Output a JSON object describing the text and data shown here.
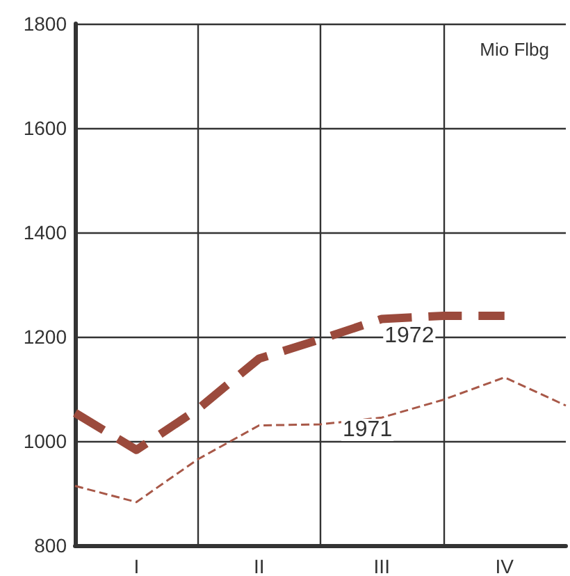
{
  "chart_data": {
    "type": "line",
    "ylabel": "Mio Flbg",
    "categories": [
      null,
      "I",
      null,
      "II",
      null,
      "III",
      null,
      "IV",
      null
    ],
    "ylim": [
      800,
      1800
    ],
    "yticks": [
      800,
      1000,
      1200,
      1400,
      1600,
      1800
    ],
    "grid": true,
    "legend": false,
    "line_style": "dashed",
    "series": [
      {
        "name": "1972",
        "color": "#9b4a3c",
        "values": [
          1054,
          983,
          1061,
          1158,
          1195,
          1234,
          1240,
          1240,
          null
        ]
      },
      {
        "name": "1971",
        "color": "#a85848",
        "values": [
          914,
          883,
          965,
          1030,
          1032,
          1045,
          1079,
          1122,
          1068
        ]
      }
    ]
  }
}
